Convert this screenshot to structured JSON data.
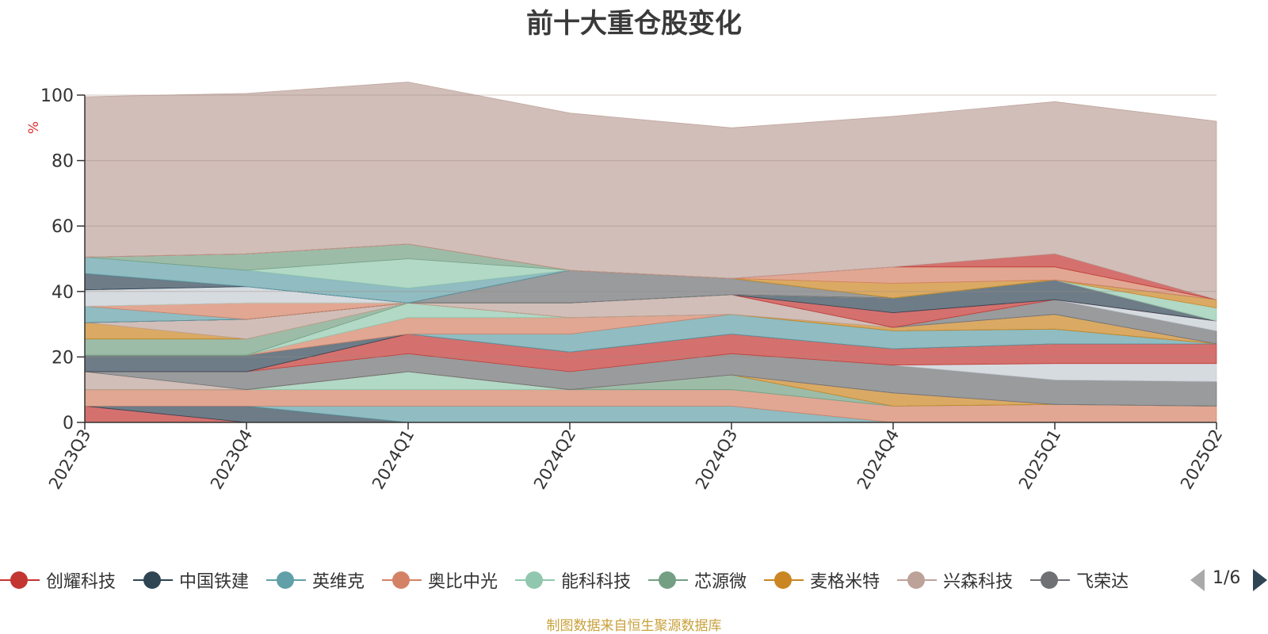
{
  "chart_data": {
    "type": "area",
    "title": "前十大重仓股变化",
    "ylabel": "%",
    "ylim": [
      0,
      100
    ],
    "y_ticks": [
      "0",
      "20",
      "40",
      "60",
      "80",
      "100"
    ],
    "categories": [
      "2023Q3",
      "2023Q4",
      "2024Q1",
      "2024Q2",
      "2024Q3",
      "2024Q4",
      "2025Q1",
      "2025Q2"
    ],
    "stacked": true,
    "grid": true,
    "legend_position": "bottom",
    "series": [
      {
        "name": "创耀科技",
        "color": "#c23531",
        "values": [
          5,
          0,
          0,
          0,
          0,
          0,
          0,
          0
        ]
      },
      {
        "name": "中国铁建",
        "color": "#2f4554",
        "values": [
          0,
          5,
          0,
          0,
          0,
          0,
          0,
          0
        ]
      },
      {
        "name": "英维克",
        "color": "#61a0a8",
        "values": [
          0,
          0,
          5,
          5,
          5,
          0,
          0,
          0
        ]
      },
      {
        "name": "奥比中光",
        "color": "#d48265",
        "values": [
          5,
          5,
          5,
          5,
          5,
          5,
          5.5,
          5
        ]
      },
      {
        "name": "能科科技",
        "color": "#91c7ae",
        "values": [
          0,
          0,
          5.5,
          0,
          0,
          0,
          0,
          0
        ]
      },
      {
        "name": "芯源微",
        "color": "#749f83",
        "values": [
          0,
          0,
          0,
          0,
          4.5,
          0,
          0,
          0
        ]
      },
      {
        "name": "麦格米特",
        "color": "#ca8622",
        "values": [
          0,
          0,
          0,
          0,
          0,
          4,
          0,
          0
        ]
      },
      {
        "name": "兴森科技",
        "color": "#bda29a",
        "values": [
          5.5,
          0,
          0,
          0,
          0,
          0,
          0,
          0
        ]
      },
      {
        "name": "飞荣达",
        "color": "#6e7074",
        "values": [
          0,
          5.5,
          5.5,
          5.5,
          6.5,
          8.5,
          7.5,
          7.5
        ]
      },
      {
        "name": "",
        "color": "#c4ccd3",
        "values": [
          0,
          0,
          0,
          0,
          0,
          0,
          5,
          5.5
        ]
      },
      {
        "name": "",
        "color": "#c23531",
        "values": [
          0,
          0,
          6,
          6,
          6,
          5,
          6,
          6
        ]
      },
      {
        "name": "",
        "color": "#2f4554",
        "values": [
          5,
          5,
          0,
          0,
          0,
          0,
          0,
          0
        ]
      },
      {
        "name": "",
        "color": "#61a0a8",
        "values": [
          0,
          0,
          0,
          5.5,
          6,
          5.5,
          4.5,
          0
        ]
      },
      {
        "name": "",
        "color": "#d48265",
        "values": [
          0,
          0,
          5,
          5,
          0,
          0,
          0,
          0
        ]
      },
      {
        "name": "",
        "color": "#91c7ae",
        "values": [
          0,
          0,
          4.5,
          0,
          0,
          0,
          0,
          0
        ]
      },
      {
        "name": "",
        "color": "#749f83",
        "values": [
          5,
          5,
          0,
          0,
          0,
          0,
          0,
          0
        ]
      },
      {
        "name": "",
        "color": "#ca8622",
        "values": [
          5,
          0,
          0,
          0,
          0,
          1,
          4.5,
          0
        ]
      },
      {
        "name": "",
        "color": "#bda29a",
        "values": [
          0,
          6,
          0,
          4.5,
          6,
          0,
          0,
          0
        ]
      },
      {
        "name": "",
        "color": "#6e7074",
        "values": [
          0,
          0,
          0,
          0,
          0,
          0,
          4.5,
          4
        ]
      },
      {
        "name": "",
        "color": "#c4ccd3",
        "values": [
          0,
          0,
          0,
          0,
          0,
          0,
          0,
          3
        ]
      },
      {
        "name": "",
        "color": "#c23531",
        "values": [
          0,
          0,
          0,
          0,
          0,
          4.5,
          0,
          0
        ]
      },
      {
        "name": "",
        "color": "#2f4554",
        "values": [
          0,
          0,
          0,
          0,
          0,
          4.5,
          6,
          0
        ]
      },
      {
        "name": "",
        "color": "#61a0a8",
        "values": [
          5,
          0,
          0,
          0,
          0,
          0,
          0,
          0
        ]
      },
      {
        "name": "",
        "color": "#d48265",
        "values": [
          0,
          5,
          0,
          0,
          0,
          0,
          0,
          0
        ]
      },
      {
        "name": "",
        "color": "#91c7ae",
        "values": [
          0,
          0,
          0,
          0,
          0,
          0,
          0,
          4
        ]
      },
      {
        "name": "",
        "color": "#ca8622",
        "values": [
          0,
          0,
          0,
          0,
          0,
          0,
          0,
          2.5
        ]
      },
      {
        "name": "",
        "color": "#c4ccd3",
        "values": [
          5,
          5,
          0,
          0,
          0,
          0,
          0,
          0
        ]
      },
      {
        "name": "",
        "color": "#6e7074",
        "values": [
          0,
          0,
          0,
          10,
          5,
          0,
          0,
          0
        ]
      },
      {
        "name": "",
        "color": "#2f4554",
        "values": [
          5,
          0,
          0,
          0,
          0,
          0,
          0,
          0
        ]
      },
      {
        "name": "",
        "color": "#61a0a8",
        "values": [
          5,
          5,
          4.5,
          0,
          0,
          0,
          0,
          0
        ]
      },
      {
        "name": "",
        "color": "#91c7ae",
        "values": [
          0,
          0,
          9,
          0,
          0,
          0,
          0,
          0
        ]
      },
      {
        "name": "",
        "color": "#749f83",
        "values": [
          0,
          5,
          4.5,
          0,
          0,
          0,
          0,
          0
        ]
      },
      {
        "name": "",
        "color": "#ca8622",
        "values": [
          0,
          0,
          0,
          0,
          0,
          4.5,
          0,
          0
        ]
      },
      {
        "name": "",
        "color": "#d48265",
        "values": [
          0,
          0,
          0,
          0,
          0,
          5,
          4,
          0
        ]
      },
      {
        "name": "",
        "color": "#c23531",
        "values": [
          0,
          0,
          0,
          0,
          0,
          0,
          4,
          0
        ]
      },
      {
        "name": "",
        "color": "#bda29a",
        "values": [
          49,
          49,
          49.5,
          48,
          46,
          46,
          46.5,
          54.5
        ]
      }
    ]
  },
  "legend": {
    "items": [
      "创耀科技",
      "中国铁建",
      "英维克",
      "奥比中光",
      "能科科技",
      "芯源微",
      "麦格米特",
      "兴森科技",
      "飞荣达"
    ],
    "colors": [
      "#c23531",
      "#2f4554",
      "#61a0a8",
      "#d48265",
      "#91c7ae",
      "#749f83",
      "#ca8622",
      "#bda29a",
      "#6e7074"
    ],
    "page": "1/6"
  },
  "source": "制图数据来自恒生聚源数据库"
}
